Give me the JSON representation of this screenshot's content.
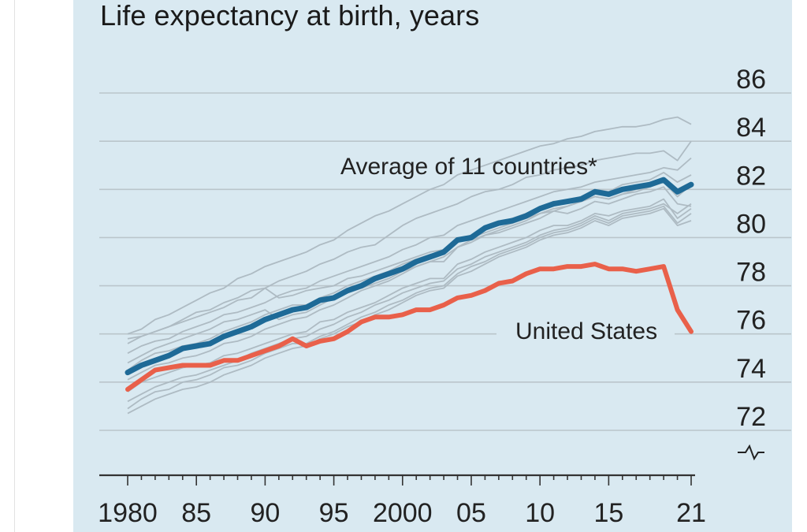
{
  "colors": {
    "panel_background": "#d9e9f1",
    "average": "#1e6a97",
    "united_states": "#e9604a",
    "countries": "#aebbc3",
    "gridline": "#bac5cb",
    "axis": "#333333"
  },
  "chart_data": {
    "type": "line",
    "title": "Life expectancy at birth, years",
    "xlabel": "",
    "ylabel": "",
    "xlim": [
      1980,
      2021
    ],
    "ylim": [
      71,
      86
    ],
    "grid": true,
    "y_axis_side": "right",
    "y_axis_break": true,
    "y_ticks": [
      72,
      74,
      76,
      78,
      80,
      82,
      84,
      86
    ],
    "y_tick_labels": [
      "72",
      "74",
      "76",
      "78",
      "80",
      "82",
      "84",
      "86"
    ],
    "x_ticks": [
      1980,
      1985,
      1990,
      1995,
      2000,
      2005,
      2010,
      2015,
      2021
    ],
    "x_tick_labels": [
      "1980",
      "85",
      "90",
      "95",
      "2000",
      "05",
      "10",
      "15",
      "21"
    ],
    "x": [
      1980,
      1981,
      1982,
      1983,
      1984,
      1985,
      1986,
      1987,
      1988,
      1989,
      1990,
      1991,
      1992,
      1993,
      1994,
      1995,
      1996,
      1997,
      1998,
      1999,
      2000,
      2001,
      2002,
      2003,
      2004,
      2005,
      2006,
      2007,
      2008,
      2009,
      2010,
      2011,
      2012,
      2013,
      2014,
      2015,
      2016,
      2017,
      2018,
      2019,
      2020,
      2021
    ],
    "series": [
      {
        "name": "Average of 11 countries*",
        "role": "average",
        "values": [
          74.4,
          74.7,
          74.9,
          75.1,
          75.4,
          75.5,
          75.6,
          75.9,
          76.1,
          76.3,
          76.6,
          76.8,
          77.0,
          77.1,
          77.4,
          77.5,
          77.8,
          78.0,
          78.3,
          78.5,
          78.7,
          79.0,
          79.2,
          79.4,
          79.9,
          80.0,
          80.4,
          80.6,
          80.7,
          80.9,
          81.2,
          81.4,
          81.5,
          81.6,
          81.9,
          81.8,
          82.0,
          82.1,
          82.2,
          82.4,
          81.9,
          82.2
        ]
      },
      {
        "name": "United States",
        "role": "united_states",
        "values": [
          73.7,
          74.1,
          74.5,
          74.6,
          74.7,
          74.7,
          74.7,
          74.9,
          74.9,
          75.1,
          75.3,
          75.5,
          75.8,
          75.5,
          75.7,
          75.8,
          76.1,
          76.5,
          76.7,
          76.7,
          76.8,
          77.0,
          77.0,
          77.2,
          77.5,
          77.6,
          77.8,
          78.1,
          78.2,
          78.5,
          78.7,
          78.7,
          78.8,
          78.8,
          78.9,
          78.7,
          78.7,
          78.6,
          78.7,
          78.8,
          77.0,
          76.1
        ]
      },
      {
        "name": "",
        "role": "country",
        "values": [
          76.0,
          76.2,
          76.6,
          76.8,
          77.1,
          77.4,
          77.7,
          77.9,
          78.3,
          78.5,
          78.8,
          79.0,
          79.2,
          79.4,
          79.7,
          79.9,
          80.3,
          80.6,
          80.9,
          81.1,
          81.4,
          81.7,
          82.0,
          82.2,
          82.6,
          82.8,
          83.0,
          83.2,
          83.4,
          83.6,
          83.8,
          83.9,
          84.1,
          84.2,
          84.4,
          84.5,
          84.6,
          84.6,
          84.7,
          84.9,
          85.0,
          84.7
        ]
      },
      {
        "name": "",
        "role": "country",
        "values": [
          75.6,
          75.9,
          76.1,
          76.3,
          76.6,
          76.9,
          77.0,
          77.3,
          77.5,
          77.8,
          77.9,
          78.2,
          78.4,
          78.6,
          78.9,
          79.1,
          79.4,
          79.6,
          79.7,
          80.1,
          80.5,
          80.8,
          81.0,
          81.2,
          81.4,
          81.7,
          81.9,
          82.0,
          82.2,
          82.5,
          82.6,
          82.8,
          82.9,
          83.0,
          83.2,
          83.3,
          83.4,
          83.5,
          83.5,
          83.6,
          83.2,
          84.0
        ]
      },
      {
        "name": "",
        "role": "country",
        "values": [
          75.2,
          75.5,
          75.7,
          75.8,
          76.1,
          76.3,
          76.5,
          76.8,
          76.9,
          77.1,
          77.3,
          77.6,
          77.8,
          77.9,
          78.2,
          78.4,
          78.6,
          78.8,
          79.0,
          79.2,
          79.5,
          79.7,
          80.0,
          80.1,
          80.5,
          80.7,
          80.9,
          81.1,
          81.3,
          81.5,
          81.7,
          81.9,
          82.0,
          82.1,
          82.3,
          82.4,
          82.5,
          82.6,
          82.7,
          82.9,
          82.8,
          83.3
        ]
      },
      {
        "name": "",
        "role": "country",
        "values": [
          74.5,
          74.9,
          75.2,
          75.3,
          75.5,
          75.6,
          75.8,
          76.1,
          76.3,
          76.5,
          76.8,
          77.0,
          77.2,
          77.2,
          77.5,
          77.7,
          78.0,
          78.2,
          78.4,
          78.6,
          78.9,
          79.1,
          79.3,
          79.3,
          79.9,
          80.1,
          80.3,
          80.6,
          80.8,
          81.0,
          81.2,
          81.5,
          81.5,
          81.7,
          82.0,
          81.9,
          82.2,
          82.3,
          82.4,
          82.7,
          82.3,
          82.6
        ]
      },
      {
        "name": "",
        "role": "country",
        "values": [
          74.1,
          74.4,
          74.7,
          74.8,
          75.0,
          75.1,
          75.3,
          75.6,
          75.7,
          75.9,
          76.2,
          76.4,
          76.6,
          76.7,
          77.0,
          77.2,
          77.5,
          77.8,
          78.0,
          78.2,
          78.5,
          78.8,
          79.0,
          79.0,
          79.6,
          79.8,
          80.1,
          80.2,
          80.4,
          80.6,
          80.8,
          81.1,
          81.0,
          81.2,
          81.5,
          81.4,
          81.6,
          81.8,
          81.9,
          82.1,
          81.4,
          81.3
        ]
      },
      {
        "name": "",
        "role": "country",
        "values": [
          73.6,
          74.0,
          74.2,
          74.4,
          74.6,
          74.7,
          74.8,
          75.1,
          75.2,
          75.4,
          75.6,
          75.8,
          76.0,
          76.1,
          76.5,
          76.6,
          76.9,
          77.1,
          77.3,
          77.6,
          77.9,
          78.1,
          78.3,
          78.3,
          78.9,
          79.1,
          79.4,
          79.6,
          79.8,
          80.0,
          80.3,
          80.5,
          80.5,
          80.7,
          81.0,
          80.9,
          81.1,
          81.2,
          81.3,
          81.6,
          80.8,
          81.2
        ]
      },
      {
        "name": "",
        "role": "country",
        "values": [
          73.2,
          73.5,
          73.8,
          74.0,
          74.2,
          74.3,
          74.5,
          74.7,
          74.9,
          75.2,
          75.4,
          75.6,
          75.8,
          75.9,
          76.2,
          76.4,
          76.7,
          76.9,
          77.2,
          77.4,
          77.7,
          77.9,
          78.1,
          78.2,
          78.7,
          78.9,
          79.2,
          79.4,
          79.6,
          79.8,
          80.1,
          80.3,
          80.4,
          80.6,
          80.9,
          80.7,
          81.0,
          81.1,
          81.2,
          81.4,
          81.0,
          81.4
        ]
      },
      {
        "name": "",
        "role": "country",
        "values": [
          72.9,
          73.3,
          73.6,
          73.7,
          74.0,
          74.1,
          74.3,
          74.6,
          74.7,
          74.9,
          75.2,
          75.4,
          75.6,
          75.6,
          75.9,
          76.1,
          76.4,
          76.7,
          76.9,
          77.2,
          77.4,
          77.7,
          77.9,
          78.0,
          78.5,
          78.8,
          79.0,
          79.3,
          79.5,
          79.7,
          80.0,
          80.2,
          80.3,
          80.5,
          80.8,
          80.6,
          80.9,
          81.0,
          81.1,
          81.3,
          80.6,
          81.0
        ]
      },
      {
        "name": "",
        "role": "country",
        "values": [
          72.7,
          73.0,
          73.3,
          73.5,
          73.7,
          73.8,
          74.0,
          74.3,
          74.5,
          74.7,
          75.0,
          75.2,
          75.4,
          75.5,
          75.8,
          76.0,
          76.3,
          76.5,
          76.8,
          77.0,
          77.3,
          77.6,
          77.8,
          77.9,
          78.4,
          78.6,
          78.9,
          79.2,
          79.4,
          79.6,
          79.9,
          80.1,
          80.2,
          80.4,
          80.7,
          80.5,
          80.8,
          80.9,
          81.0,
          81.2,
          80.5,
          80.7
        ]
      },
      {
        "name": "",
        "role": "country",
        "values": [
          75.8,
          75.9,
          76.1,
          76.3,
          76.5,
          76.7,
          76.9,
          77.1,
          77.4,
          77.5,
          77.9,
          77.5,
          77.6,
          77.8,
          77.9,
          78.0,
          78.3,
          78.4,
          78.6,
          78.8,
          79.0,
          79.2,
          79.4,
          79.5,
          79.8,
          80.0,
          80.2,
          80.4,
          80.6,
          80.8,
          81.0,
          81.2,
          81.3,
          81.5,
          81.7,
          81.6,
          81.8,
          81.9,
          82.1,
          82.3,
          81.7,
          82.2
        ]
      },
      {
        "name": "",
        "role": "country",
        "values": [
          74.8,
          75.1,
          75.4,
          75.6,
          75.8,
          76.0,
          76.2,
          76.5,
          76.6,
          76.8,
          77.0,
          76.6,
          76.8,
          76.9,
          77.2,
          77.5,
          77.7,
          77.9,
          78.1,
          78.3,
          78.6,
          78.8,
          79.0,
          79.2,
          79.6,
          79.9,
          80.1,
          80.3,
          80.5,
          80.7,
          81.0,
          81.1,
          81.3,
          81.5,
          81.7,
          81.6,
          81.8,
          82.0,
          82.1,
          82.4,
          82.0,
          82.3
        ]
      }
    ],
    "annotations": [
      {
        "text": "Average of 11 countries*",
        "series": "Average of 11 countries*"
      },
      {
        "text": "United States",
        "series": "United States"
      }
    ]
  }
}
